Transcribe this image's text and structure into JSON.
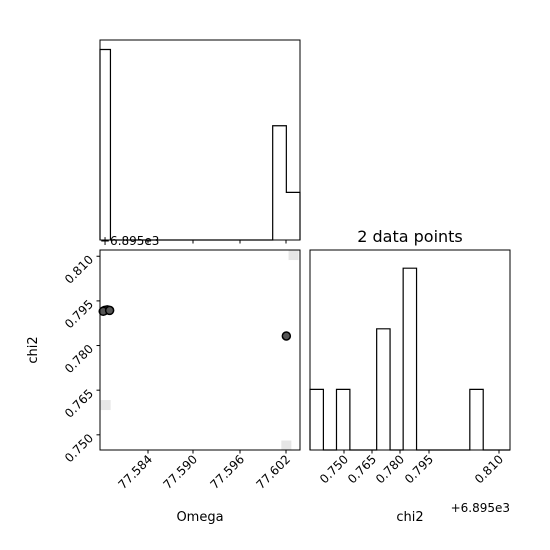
{
  "chart_data": {
    "type": "corner",
    "title": "2 data points",
    "parameters": [
      "Omega",
      "chi2"
    ],
    "offset_label": "+6.895e3",
    "panels": [
      {
        "name": "omega-histogram",
        "type": "histogram",
        "xlim": [
          77.5784,
          77.6033
        ],
        "bin_edges": [
          77.5784,
          77.5797,
          77.5999,
          77.6016,
          77.6033
        ],
        "counts": [
          2,
          0,
          1.2,
          0.5
        ],
        "ylim": [
          0,
          2.1
        ],
        "xticks": [
          "77.584",
          "77.590",
          "77.596",
          "77.602"
        ]
      },
      {
        "name": "chi2-vs-omega-scatter",
        "type": "scatter",
        "xlim": [
          77.5784,
          77.6033
        ],
        "ylim": [
          0.7449,
          0.8121
        ],
        "points": [
          {
            "x": 77.579,
            "y": 0.7918
          },
          {
            "x": 77.5793,
            "y": 0.792
          },
          {
            "x": 77.5788,
            "y": 0.7915
          },
          {
            "x": 77.5796,
            "y": 0.7918
          },
          {
            "x": 77.6016,
            "y": 0.7832
          }
        ],
        "background_cells": [
          {
            "x": 77.6025,
            "y": 0.8104
          },
          {
            "x": 77.5791,
            "y": 0.76
          },
          {
            "x": 77.6016,
            "y": 0.7464
          }
        ],
        "xticks": [
          "77.584",
          "77.590",
          "77.596",
          "77.602"
        ],
        "yticks": [
          "0.750",
          "0.765",
          "0.780",
          "0.795",
          "0.810"
        ]
      },
      {
        "name": "chi2-histogram",
        "type": "histogram",
        "xlim": [
          0.7449,
          0.8121
        ],
        "bin_edges": [
          0.7449,
          0.7494,
          0.7538,
          0.7583,
          0.7628,
          0.7673,
          0.7718,
          0.7762,
          0.7807,
          0.7852,
          0.7897,
          0.7942,
          0.7986,
          0.8031,
          0.8076,
          0.8121
        ],
        "counts": [
          1,
          0,
          1,
          0,
          0,
          2,
          0,
          3,
          0,
          0,
          0,
          0,
          1,
          0,
          0
        ],
        "ylim": [
          0,
          3.3
        ],
        "xticks": [
          "0.750",
          "0.765",
          "0.780",
          "0.795",
          "0.810"
        ]
      }
    ]
  }
}
